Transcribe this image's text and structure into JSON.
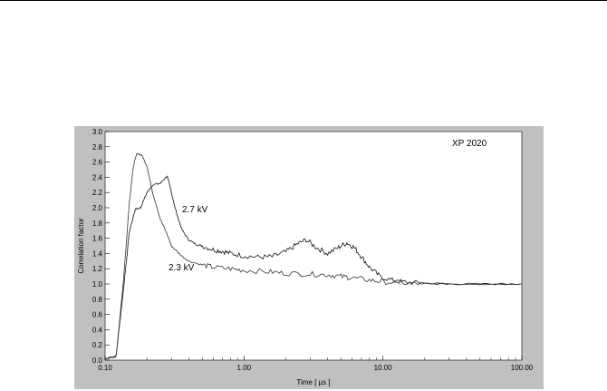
{
  "chart_data": {
    "type": "line",
    "xlabel": "Time [ µs ]",
    "ylabel": "Correlation factor",
    "xscale": "log",
    "xlim": [
      0.1,
      100.0
    ],
    "ylim": [
      0.0,
      3.0
    ],
    "grid": false,
    "x_tick_labels": [
      "0.10",
      "1.00",
      "10.00",
      "100.00"
    ],
    "y_tick_labels": [
      "0.0",
      "0.2",
      "0.4",
      "0.6",
      "0.8",
      "1.0",
      "1.2",
      "1.4",
      "1.6",
      "1.8",
      "2.0",
      "2.2",
      "2.4",
      "2.6",
      "2.8",
      "3.0"
    ],
    "annotations": [
      "XP 2020",
      "2.7 kV",
      "2.3 kV"
    ],
    "series": [
      {
        "name": "2.7 kV",
        "x": [
          0.1,
          0.12,
          0.135,
          0.15,
          0.165,
          0.18,
          0.2,
          0.22,
          0.25,
          0.28,
          0.3,
          0.33,
          0.36,
          0.4,
          0.45,
          0.5,
          0.6,
          0.7,
          0.8,
          1.0,
          1.3,
          1.6,
          2.0,
          2.4,
          2.8,
          3.3,
          4.0,
          4.8,
          5.5,
          6.2,
          7.0,
          8.0,
          9.5,
          12.0,
          15.0,
          20.0,
          30.0,
          50.0,
          100.0
        ],
        "y": [
          0.02,
          0.05,
          0.9,
          1.7,
          1.98,
          2.0,
          2.2,
          2.3,
          2.32,
          2.42,
          2.2,
          1.9,
          1.7,
          1.58,
          1.52,
          1.5,
          1.45,
          1.43,
          1.4,
          1.37,
          1.35,
          1.36,
          1.42,
          1.52,
          1.58,
          1.48,
          1.4,
          1.48,
          1.54,
          1.48,
          1.36,
          1.22,
          1.1,
          1.04,
          1.02,
          1.01,
          1.0,
          1.0,
          1.0
        ]
      },
      {
        "name": "2.3 kV",
        "x": [
          0.1,
          0.12,
          0.135,
          0.15,
          0.16,
          0.17,
          0.185,
          0.2,
          0.22,
          0.25,
          0.28,
          0.3,
          0.35,
          0.4,
          0.5,
          0.6,
          0.8,
          1.0,
          1.5,
          2.0,
          3.0,
          4.0,
          5.0,
          6.0,
          8.0,
          10.0,
          15.0,
          20.0,
          30.0,
          50.0,
          100.0
        ],
        "y": [
          0.02,
          0.05,
          1.0,
          2.1,
          2.55,
          2.72,
          2.68,
          2.55,
          2.2,
          1.85,
          1.65,
          1.5,
          1.38,
          1.3,
          1.25,
          1.22,
          1.2,
          1.18,
          1.16,
          1.14,
          1.13,
          1.12,
          1.1,
          1.08,
          1.05,
          1.03,
          1.01,
          1.0,
          1.0,
          1.0,
          1.0
        ]
      }
    ]
  }
}
